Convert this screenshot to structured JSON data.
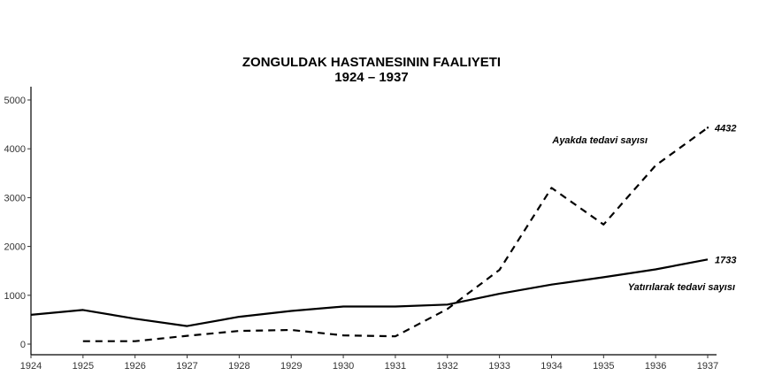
{
  "title": "ZONGULDAK HASTANESININ FAALIYETI",
  "subtitle": "1924 – 1937",
  "chart_data": {
    "type": "line",
    "title": "ZONGULDAK HASTANESININ FAALIYETI",
    "subtitle": "1924 – 1937",
    "xlabel": "",
    "ylabel": "",
    "x_ticks": [
      "1924",
      "1925",
      "1926",
      "1927",
      "1928",
      "1929",
      "1930",
      "1931",
      "1932",
      "1933",
      "1934",
      "1935",
      "1936",
      "1937"
    ],
    "y_ticks": [
      0,
      1000,
      2000,
      3000,
      4000,
      5000
    ],
    "ylim": [
      -220,
      5250
    ],
    "grid": false,
    "legend": "none",
    "series": [
      {
        "name": "Yatırılarak tedavi sayısı",
        "style": "solid",
        "color": "#000000",
        "end_label": "1733",
        "values": [
          600,
          700,
          520,
          370,
          560,
          680,
          770,
          770,
          810,
          1030,
          1220,
          1370,
          1530,
          1733
        ]
      },
      {
        "name": "Ayakda tedavi sayısı",
        "style": "dashed",
        "color": "#000000",
        "end_label": "4432",
        "values": [
          null,
          60,
          60,
          170,
          270,
          290,
          180,
          160,
          720,
          1520,
          3200,
          2450,
          3660,
          4432
        ]
      }
    ]
  }
}
